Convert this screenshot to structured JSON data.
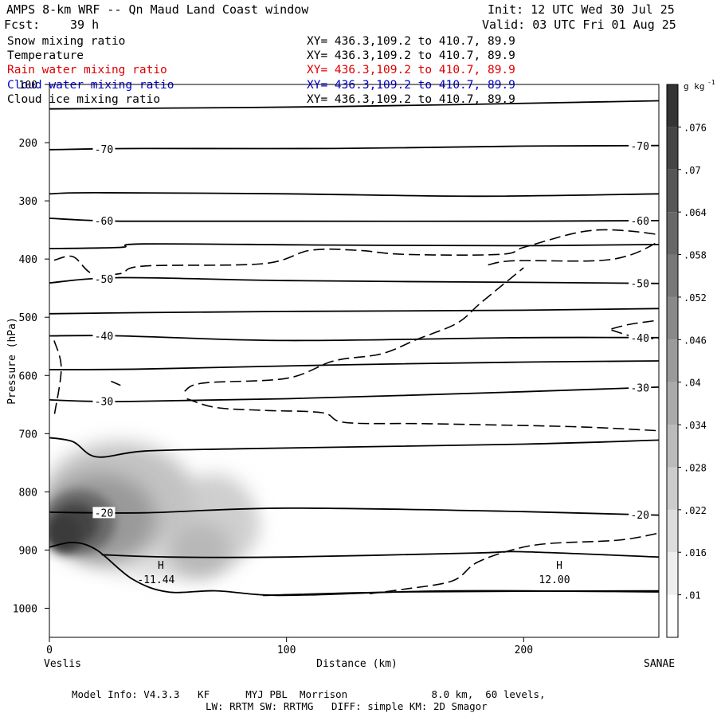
{
  "header": {
    "title": "AMPS 8-km WRF -- Qn Maud Land Coast window",
    "init": "Init: 12 UTC Wed 30 Jul 25",
    "fcst_label": "Fcst:",
    "fcst_hours": "39 h",
    "valid": "Valid: 03 UTC Fri 01 Aug 25"
  },
  "fields": [
    {
      "name": "Snow mixing ratio",
      "xy": "XY= 436.3,109.2 to 410.7, 89.9",
      "color": "#000000"
    },
    {
      "name": "Temperature",
      "xy": "XY= 436.3,109.2 to 410.7, 89.9",
      "color": "#000000"
    },
    {
      "name": "Rain water mixing ratio",
      "xy": "XY= 436.3,109.2 to 410.7, 89.9",
      "color": "#e00000"
    },
    {
      "name": "Cloud water mixing ratio",
      "xy": "XY= 436.3,109.2 to 410.7, 89.9",
      "color": "#0000cc"
    },
    {
      "name": "Cloud ice mixing ratio",
      "xy": "XY= 436.3,109.2 to 410.7, 89.9",
      "color": "#000000"
    }
  ],
  "footer": {
    "line1": "Model Info: V4.3.3   KF      MYJ PBL  Morrison              8.0 km,  60 levels,",
    "line2": "LW: RRTM SW: RRTMG   DIFF: simple KM: 2D Smagor"
  },
  "chart_data": {
    "type": "contour",
    "xlabel": "Distance (km)",
    "ylabel": "Pressure (hPa)",
    "xlim": [
      0,
      257
    ],
    "ylim": [
      1050,
      100
    ],
    "x_ticks": [
      0,
      100,
      200
    ],
    "y_ticks": [
      100,
      200,
      300,
      400,
      500,
      600,
      700,
      800,
      900,
      1000
    ],
    "start_label": "Veslis",
    "end_label": "SANAE",
    "temperature_isotherms": [
      {
        "points": [
          [
            0,
            142
          ],
          [
            120,
            138
          ],
          [
            257,
            128
          ]
        ]
      },
      {
        "label": "-70",
        "points": [
          [
            0,
            212
          ],
          [
            40,
            210
          ],
          [
            120,
            210
          ],
          [
            200,
            206
          ],
          [
            257,
            205
          ]
        ]
      },
      {
        "points": [
          [
            0,
            288
          ],
          [
            20,
            286
          ],
          [
            100,
            288
          ],
          [
            180,
            292
          ],
          [
            257,
            288
          ]
        ]
      },
      {
        "label": "-60",
        "points": [
          [
            0,
            330
          ],
          [
            30,
            335
          ],
          [
            100,
            335
          ],
          [
            200,
            335
          ],
          [
            257,
            334
          ]
        ]
      },
      {
        "points": [
          [
            0,
            382
          ],
          [
            30,
            380
          ],
          [
            40,
            374
          ],
          [
            120,
            376
          ],
          [
            200,
            377
          ],
          [
            257,
            375
          ]
        ]
      },
      {
        "label": "-50",
        "points": [
          [
            0,
            441
          ],
          [
            30,
            432
          ],
          [
            100,
            437
          ],
          [
            200,
            440
          ],
          [
            257,
            442
          ]
        ]
      },
      {
        "points": [
          [
            0,
            494
          ],
          [
            40,
            492
          ],
          [
            100,
            490
          ],
          [
            200,
            488
          ],
          [
            257,
            485
          ]
        ]
      },
      {
        "label": "-40",
        "points": [
          [
            0,
            532
          ],
          [
            30,
            532
          ],
          [
            100,
            540
          ],
          [
            200,
            535
          ],
          [
            257,
            535
          ]
        ]
      },
      {
        "points": [
          [
            0,
            590
          ],
          [
            40,
            589
          ],
          [
            120,
            582
          ],
          [
            200,
            577
          ],
          [
            257,
            575
          ]
        ]
      },
      {
        "label": "-30",
        "points": [
          [
            0,
            642
          ],
          [
            30,
            645
          ],
          [
            100,
            640
          ],
          [
            200,
            628
          ],
          [
            257,
            620
          ]
        ]
      },
      {
        "points": [
          [
            0,
            707
          ],
          [
            10,
            714
          ],
          [
            20,
            740
          ],
          [
            40,
            730
          ],
          [
            80,
            726
          ],
          [
            200,
            718
          ],
          [
            257,
            711
          ]
        ]
      },
      {
        "label": "-20",
        "points": [
          [
            0,
            835
          ],
          [
            40,
            836
          ],
          [
            100,
            828
          ],
          [
            200,
            834
          ],
          [
            257,
            840
          ]
        ]
      },
      {
        "points": [
          [
            0,
            895
          ],
          [
            10,
            887
          ],
          [
            20,
            900
          ],
          [
            35,
            950
          ],
          [
            50,
            972
          ],
          [
            70,
            970
          ],
          [
            90,
            977
          ],
          [
            110,
            977
          ],
          [
            170,
            970
          ],
          [
            257,
            972
          ]
        ]
      },
      {
        "points": [
          [
            22,
            908
          ],
          [
            50,
            912
          ],
          [
            100,
            912
          ],
          [
            180,
            905
          ],
          [
            200,
            903
          ],
          [
            257,
            912
          ]
        ]
      },
      {
        "points": [
          [
            90,
            978
          ],
          [
            150,
            972
          ],
          [
            257,
            970
          ]
        ]
      }
    ],
    "freezing_level_dashed": [
      {
        "points": [
          [
            2,
            402
          ],
          [
            10,
            396
          ],
          [
            18,
            425
          ],
          [
            30,
            425
          ],
          [
            40,
            412
          ],
          [
            90,
            408
          ],
          [
            110,
            385
          ],
          [
            130,
            385
          ],
          [
            150,
            392
          ],
          [
            190,
            392
          ],
          [
            200,
            380
          ],
          [
            220,
            357
          ],
          [
            232,
            350
          ],
          [
            245,
            352
          ],
          [
            257,
            358
          ]
        ]
      },
      {
        "points": [
          [
            185,
            410
          ],
          [
            196,
            403
          ],
          [
            230,
            403
          ],
          [
            245,
            393
          ],
          [
            257,
            370
          ]
        ]
      },
      {
        "points": [
          [
            2,
            540
          ],
          [
            5,
            588
          ],
          [
            2,
            670
          ]
        ]
      },
      {
        "points": [
          [
            26,
            610
          ],
          [
            30,
            617
          ]
        ]
      },
      {
        "points": [
          [
            57,
            627
          ],
          [
            65,
            613
          ],
          [
            100,
            605
          ],
          [
            120,
            575
          ],
          [
            140,
            563
          ],
          [
            155,
            538
          ],
          [
            172,
            510
          ],
          [
            182,
            475
          ],
          [
            200,
            415
          ]
        ]
      },
      {
        "points": [
          [
            58,
            640
          ],
          [
            70,
            655
          ],
          [
            90,
            660
          ],
          [
            115,
            664
          ],
          [
            125,
            681
          ],
          [
            160,
            683
          ],
          [
            220,
            688
          ],
          [
            257,
            695
          ]
        ]
      },
      {
        "points": [
          [
            237,
            520
          ],
          [
            245,
            512
          ],
          [
            257,
            505
          ]
        ]
      },
      {
        "points": [
          [
            237,
            522
          ],
          [
            247,
            534
          ],
          [
            257,
            537
          ]
        ]
      },
      {
        "points": [
          [
            135,
            975
          ],
          [
            150,
            967
          ],
          [
            170,
            953
          ],
          [
            180,
            922
          ],
          [
            195,
            900
          ],
          [
            210,
            889
          ],
          [
            240,
            883
          ],
          [
            257,
            871
          ]
        ]
      }
    ],
    "snow_mixing_ratio_max": {
      "x": 15,
      "p": 860,
      "value_approx": 0.076
    },
    "extrema_labels": [
      {
        "marker": "H",
        "value": "-11.44",
        "x": 47,
        "p": 965
      },
      {
        "marker": "H",
        "value": "12.00",
        "x": 215,
        "p": 965
      }
    ],
    "colorbar": {
      "unit_label": "g kg",
      "unit_exponent": "-1",
      "levels": [
        0.01,
        0.016,
        0.022,
        0.028,
        0.034,
        0.04,
        0.046,
        0.052,
        0.058,
        0.064,
        0.07,
        0.076
      ]
    }
  }
}
